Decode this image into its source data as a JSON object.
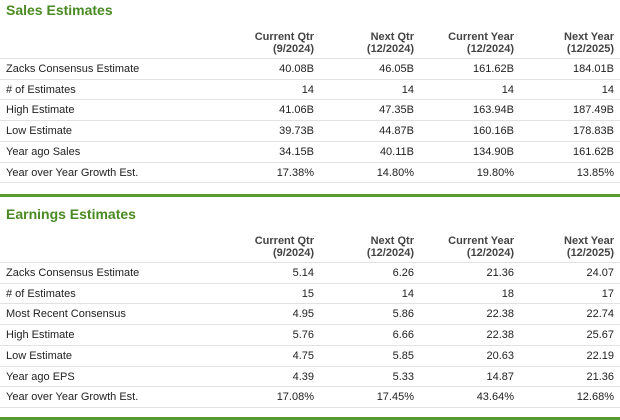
{
  "sections": [
    {
      "title": "Sales Estimates",
      "columns": [
        [
          "Current Qtr",
          "(9/2024)"
        ],
        [
          "Next Qtr",
          "(12/2024)"
        ],
        [
          "Current Year",
          "(12/2024)"
        ],
        [
          "Next Year",
          "(12/2025)"
        ]
      ],
      "rows": [
        [
          "Zacks Consensus Estimate",
          "40.08B",
          "46.05B",
          "161.62B",
          "184.01B"
        ],
        [
          "# of Estimates",
          "14",
          "14",
          "14",
          "14"
        ],
        [
          "High Estimate",
          "41.06B",
          "47.35B",
          "163.94B",
          "187.49B"
        ],
        [
          "Low Estimate",
          "39.73B",
          "44.87B",
          "160.16B",
          "178.83B"
        ],
        [
          "Year ago Sales",
          "34.15B",
          "40.11B",
          "134.90B",
          "161.62B"
        ],
        [
          "Year over Year Growth Est.",
          "17.38%",
          "14.80%",
          "19.80%",
          "13.85%"
        ]
      ]
    },
    {
      "title": "Earnings Estimates",
      "columns": [
        [
          "Current Qtr",
          "(9/2024)"
        ],
        [
          "Next Qtr",
          "(12/2024)"
        ],
        [
          "Current Year",
          "(12/2024)"
        ],
        [
          "Next Year",
          "(12/2025)"
        ]
      ],
      "rows": [
        [
          "Zacks Consensus Estimate",
          "5.14",
          "6.26",
          "21.36",
          "24.07"
        ],
        [
          "# of Estimates",
          "15",
          "14",
          "18",
          "17"
        ],
        [
          "Most Recent Consensus",
          "4.95",
          "5.86",
          "22.38",
          "22.74"
        ],
        [
          "High Estimate",
          "5.76",
          "6.66",
          "22.38",
          "25.67"
        ],
        [
          "Low Estimate",
          "4.75",
          "5.85",
          "20.63",
          "22.19"
        ],
        [
          "Year ago EPS",
          "4.39",
          "5.33",
          "14.87",
          "21.36"
        ],
        [
          "Year over Year Growth Est.",
          "17.08%",
          "17.45%",
          "43.64%",
          "12.68%"
        ]
      ]
    }
  ]
}
